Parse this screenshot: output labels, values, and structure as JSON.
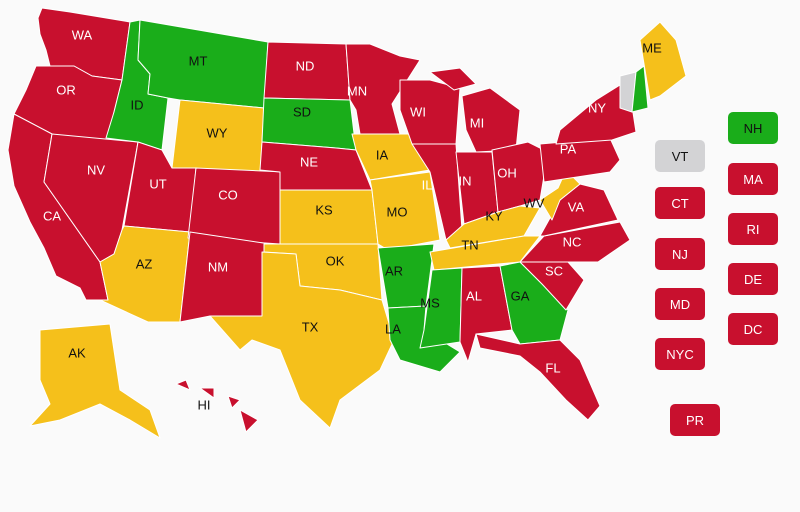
{
  "colors": {
    "red": "#c8102e",
    "yellow": "#f5c01b",
    "green": "#1aad1a",
    "gray": "#d3d3d5"
  },
  "states": {
    "WA": {
      "status": "red"
    },
    "OR": {
      "status": "red"
    },
    "CA": {
      "status": "red"
    },
    "NV": {
      "status": "red"
    },
    "ID": {
      "status": "green"
    },
    "MT": {
      "status": "green"
    },
    "WY": {
      "status": "yellow"
    },
    "UT": {
      "status": "red"
    },
    "AZ": {
      "status": "yellow"
    },
    "CO": {
      "status": "red"
    },
    "NM": {
      "status": "red"
    },
    "ND": {
      "status": "red"
    },
    "SD": {
      "status": "green"
    },
    "NE": {
      "status": "red"
    },
    "KS": {
      "status": "yellow"
    },
    "OK": {
      "status": "yellow"
    },
    "TX": {
      "status": "yellow"
    },
    "MN": {
      "status": "red"
    },
    "IA": {
      "status": "yellow"
    },
    "MO": {
      "status": "yellow"
    },
    "AR": {
      "status": "green"
    },
    "LA": {
      "status": "green"
    },
    "WI": {
      "status": "red"
    },
    "IL": {
      "status": "red"
    },
    "MI": {
      "status": "red"
    },
    "IN": {
      "status": "red"
    },
    "OH": {
      "status": "red"
    },
    "KY": {
      "status": "yellow"
    },
    "TN": {
      "status": "yellow"
    },
    "MS": {
      "status": "green"
    },
    "AL": {
      "status": "red"
    },
    "GA": {
      "status": "green"
    },
    "FL": {
      "status": "red"
    },
    "SC": {
      "status": "red"
    },
    "NC": {
      "status": "red"
    },
    "VA": {
      "status": "red"
    },
    "WV": {
      "status": "yellow"
    },
    "PA": {
      "status": "red"
    },
    "NY": {
      "status": "red"
    },
    "ME": {
      "status": "yellow"
    },
    "AK": {
      "status": "yellow"
    },
    "HI": {
      "status": "red"
    }
  },
  "small": {
    "VT": {
      "status": "gray"
    },
    "NH": {
      "status": "green"
    },
    "MA": {
      "status": "red"
    },
    "CT": {
      "status": "red"
    },
    "RI": {
      "status": "red"
    },
    "NJ": {
      "status": "red"
    },
    "DE": {
      "status": "red"
    },
    "MD": {
      "status": "red"
    },
    "DC": {
      "status": "red"
    },
    "NYC": {
      "status": "red"
    },
    "PR": {
      "status": "red"
    }
  }
}
